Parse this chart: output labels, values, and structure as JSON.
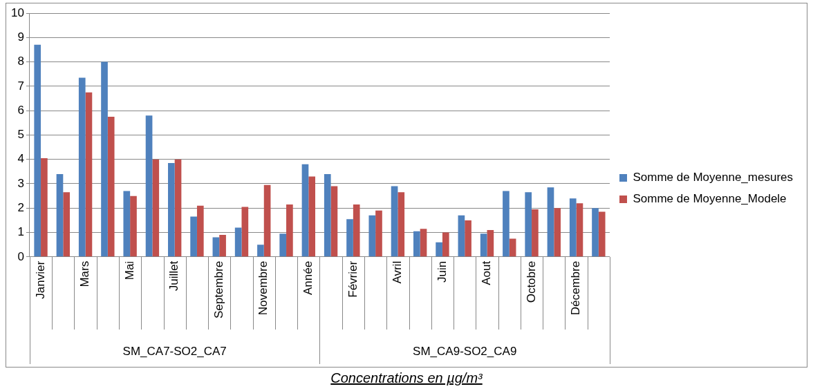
{
  "chart_data": {
    "type": "bar",
    "categories": [
      "Janvier",
      null,
      "Mars",
      null,
      "Mai",
      null,
      "Juillet",
      null,
      "Septembre",
      null,
      "Novembre",
      null,
      "Année",
      null,
      "Février",
      null,
      "Avril",
      null,
      "Juin",
      null,
      "Aout",
      null,
      "Octobre",
      null,
      "Décembre",
      null
    ],
    "series": [
      {
        "name": "Somme de Moyenne_mesures",
        "color": "#4f81bd",
        "values": [
          8.7,
          3.4,
          7.35,
          8.0,
          2.7,
          5.8,
          3.85,
          1.65,
          0.8,
          1.2,
          0.5,
          0.95,
          3.8,
          3.4,
          1.55,
          1.7,
          2.9,
          1.05,
          0.6,
          1.7,
          0.95,
          2.7,
          2.65,
          2.85,
          2.4,
          2.0
        ]
      },
      {
        "name": "Somme de Moyenne_Modele",
        "color": "#c0504d",
        "values": [
          4.05,
          2.65,
          6.75,
          5.75,
          2.5,
          4.0,
          4.0,
          2.1,
          0.9,
          2.05,
          2.95,
          2.15,
          3.3,
          2.9,
          2.15,
          1.9,
          2.65,
          1.15,
          1.0,
          1.5,
          1.1,
          0.75,
          1.95,
          2.0,
          2.2,
          1.85
        ]
      }
    ],
    "ylim": [
      0,
      10
    ],
    "yticks": [
      0,
      1,
      2,
      3,
      4,
      5,
      6,
      7,
      8,
      9,
      10
    ],
    "grid": "y",
    "legend": "right",
    "xlabel": "Concentrations en µg/m³",
    "annotations": [
      "SM_CA7-SO2_CA7",
      "SM_CA9-SO2_CA9"
    ]
  }
}
